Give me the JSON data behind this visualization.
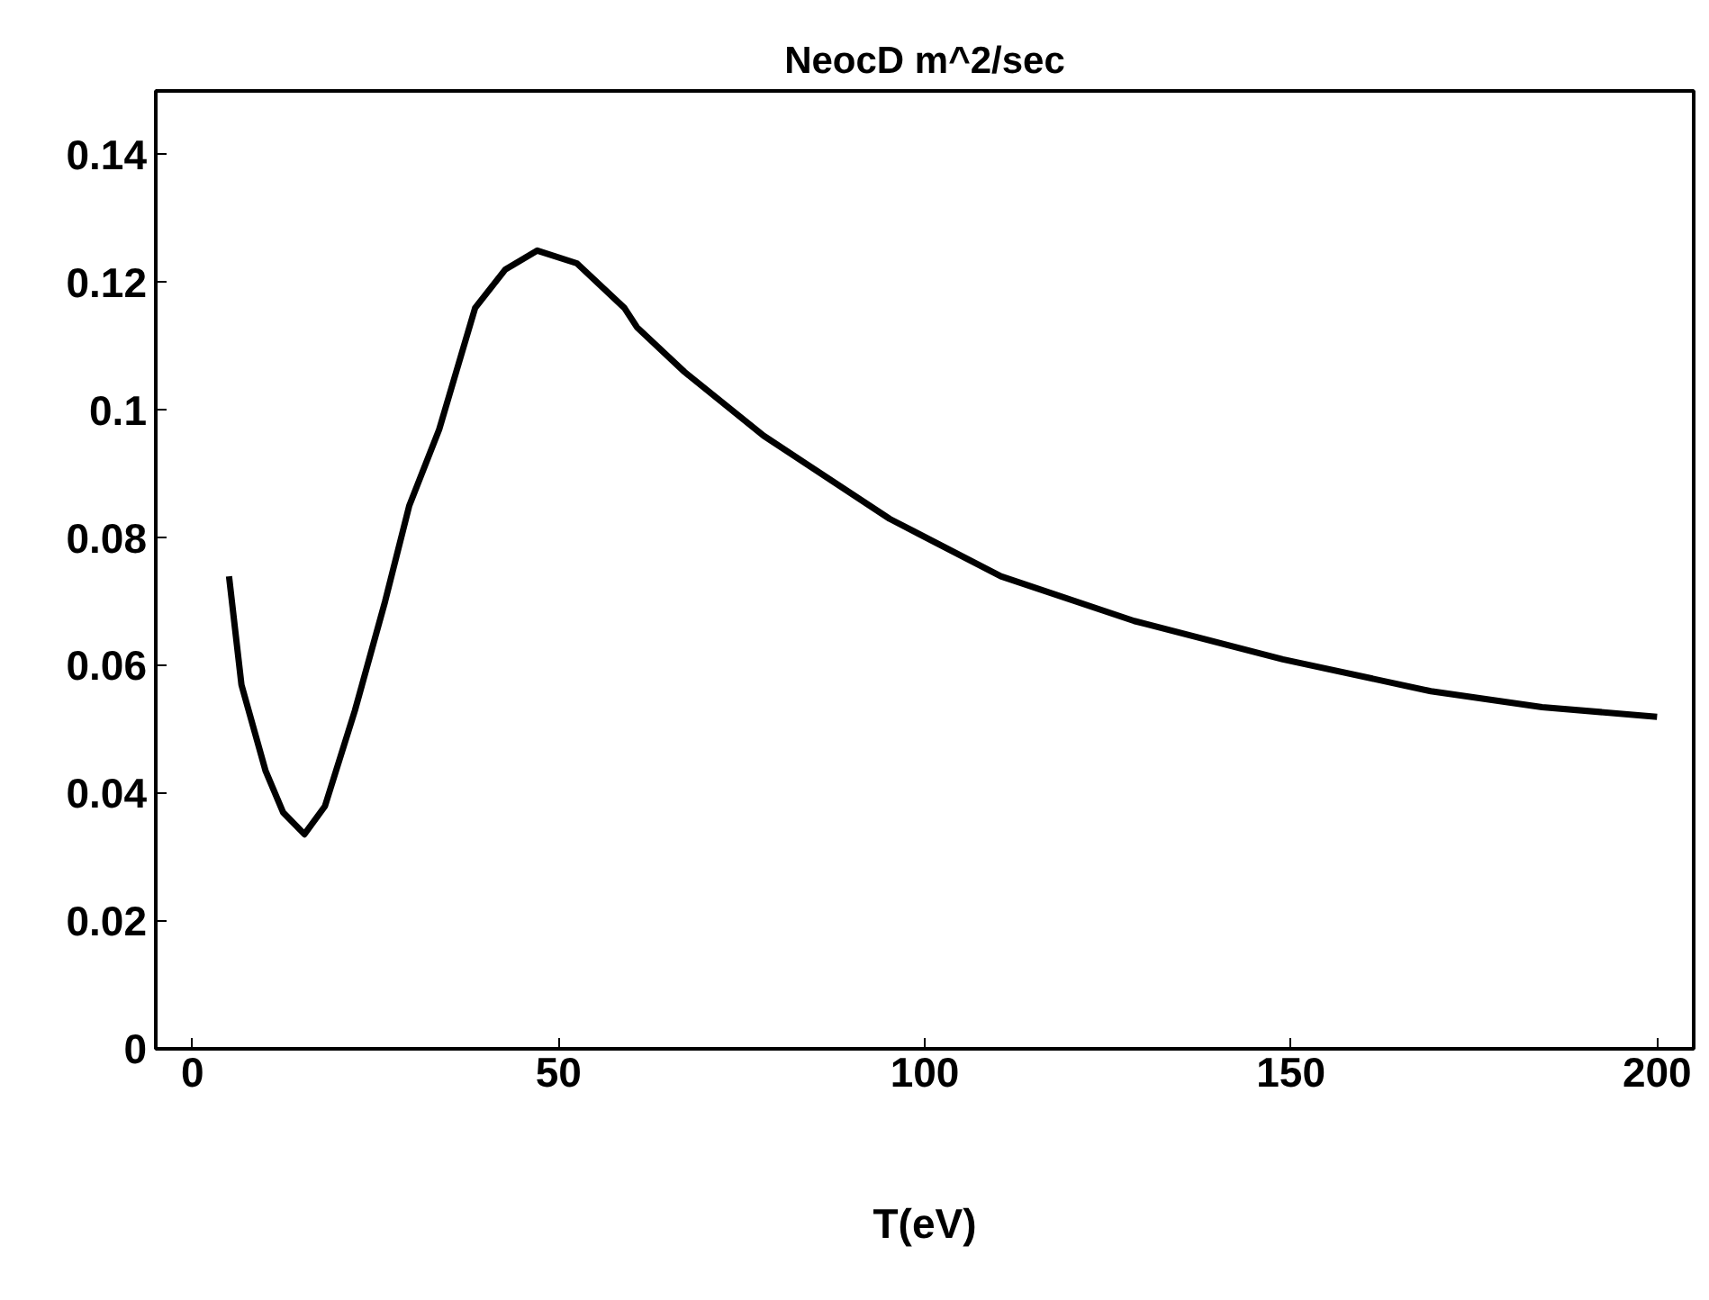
{
  "chart_data": {
    "type": "line",
    "title": "NeocD m^2/sec",
    "xlabel": "T(eV)",
    "xlim": [
      -5,
      205
    ],
    "ylim": [
      0,
      0.15
    ],
    "xticks": [
      0,
      50,
      100,
      150,
      200
    ],
    "yticks": [
      0,
      0.02,
      0.04,
      0.06,
      0.08,
      0.1,
      0.12,
      0.14
    ],
    "grid": false,
    "series": [
      {
        "color": "#000000",
        "x": [
          5,
          6.7,
          10.0,
          12.4,
          15.3,
          18.1,
          22.2,
          26.3,
          29.6,
          33.7,
          38.6,
          42.7,
          47.1,
          52.5,
          59.0,
          60.7,
          67.2,
          78,
          95.2,
          110.4,
          128.6,
          148.9,
          169.1,
          184.3,
          200
        ],
        "values": [
          0.074,
          0.057,
          0.0435,
          0.037,
          0.0336,
          0.038,
          0.053,
          0.07,
          0.085,
          0.097,
          0.116,
          0.122,
          0.125,
          0.123,
          0.116,
          0.113,
          0.106,
          0.096,
          0.083,
          0.074,
          0.067,
          0.061,
          0.056,
          0.0535,
          0.052
        ]
      }
    ]
  }
}
